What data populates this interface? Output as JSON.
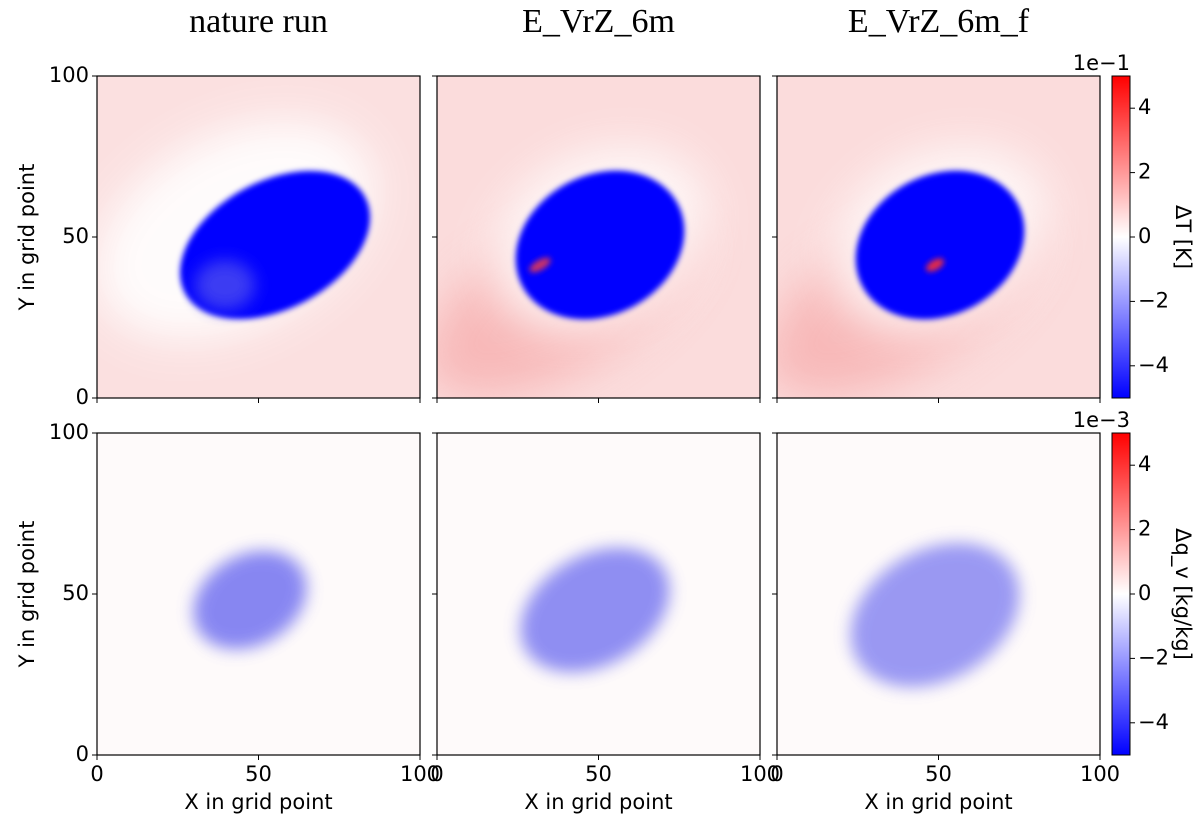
{
  "chart_data": [
    {
      "type": "heatmap",
      "title": "nature run",
      "ylabel": "Y in grid point",
      "xlim": [
        0,
        100
      ],
      "ylim": [
        0,
        100
      ],
      "xticks": [
        0,
        50,
        100
      ],
      "yticks": [
        0,
        50,
        100
      ],
      "colormap": "bwr"
    },
    {
      "type": "heatmap",
      "title": "E_VrZ_6m",
      "xlim": [
        0,
        100
      ],
      "ylim": [
        0,
        100
      ],
      "xticks": [
        0,
        50,
        100
      ],
      "yticks": [
        0,
        50,
        100
      ],
      "colormap": "bwr"
    },
    {
      "type": "heatmap",
      "title": "E_VrZ_6m_f",
      "xlim": [
        0,
        100
      ],
      "ylim": [
        0,
        100
      ],
      "xticks": [
        0,
        50,
        100
      ],
      "yticks": [
        0,
        50,
        100
      ],
      "colormap": "bwr"
    },
    {
      "type": "heatmap",
      "xlabel": "X in grid point",
      "ylabel": "Y in grid point",
      "xlim": [
        0,
        100
      ],
      "ylim": [
        0,
        100
      ],
      "xticks": [
        0,
        50,
        100
      ],
      "yticks": [
        0,
        50,
        100
      ],
      "colormap": "bwr"
    },
    {
      "type": "heatmap",
      "xlabel": "X in grid point",
      "xlim": [
        0,
        100
      ],
      "ylim": [
        0,
        100
      ],
      "xticks": [
        0,
        50,
        100
      ],
      "yticks": [
        0,
        50,
        100
      ],
      "colormap": "bwr"
    },
    {
      "type": "heatmap",
      "xlabel": "X in grid point",
      "xlim": [
        0,
        100
      ],
      "ylim": [
        0,
        100
      ],
      "xticks": [
        0,
        50,
        100
      ],
      "yticks": [
        0,
        50,
        100
      ],
      "colormap": "bwr"
    }
  ],
  "colorbars": [
    {
      "label": "ΔT [K]",
      "offset_text": "1e−1",
      "lim": [
        -5,
        5
      ],
      "ticks": [
        {
          "value": -4,
          "label": "−4"
        },
        {
          "value": -2,
          "label": "−2"
        },
        0,
        2,
        4
      ]
    },
    {
      "label": "Δq_v [kg/kg]",
      "offset_text": "1e−3",
      "lim": [
        -5,
        5
      ],
      "ticks": [
        {
          "value": -4,
          "label": "−4"
        },
        {
          "value": -2,
          "label": "−2"
        },
        0,
        2,
        4
      ]
    }
  ]
}
